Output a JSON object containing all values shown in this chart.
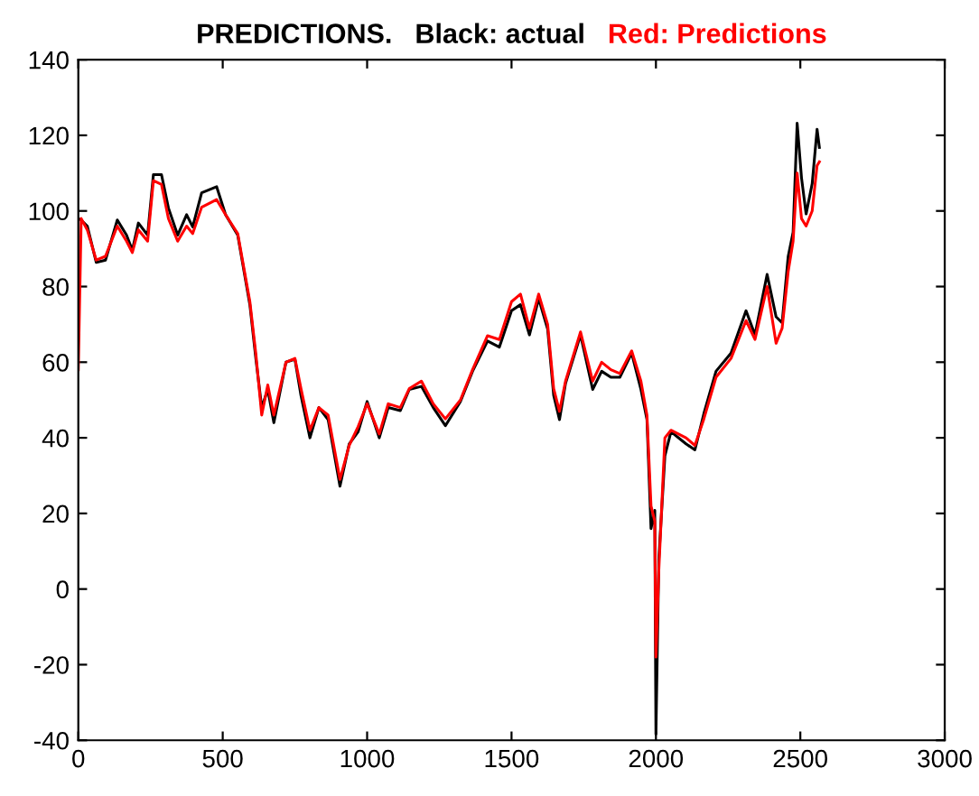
{
  "chart_data": {
    "type": "line",
    "title": "PREDICTIONS.",
    "x": [
      0,
      10,
      31,
      62,
      94,
      135,
      167,
      187,
      208,
      240,
      260,
      288,
      312,
      344,
      375,
      396,
      427,
      479,
      510,
      552,
      594,
      615,
      635,
      656,
      677,
      719,
      750,
      771,
      802,
      833,
      865,
      906,
      938,
      969,
      1000,
      1042,
      1073,
      1115,
      1146,
      1188,
      1229,
      1271,
      1323,
      1365,
      1417,
      1458,
      1500,
      1531,
      1562,
      1594,
      1625,
      1646,
      1666,
      1687,
      1739,
      1781,
      1812,
      1844,
      1875,
      1916,
      1948,
      1969,
      1983,
      1996,
      2000,
      2010,
      2031,
      2052,
      2104,
      2135,
      2166,
      2208,
      2260,
      2312,
      2343,
      2385,
      2416,
      2437,
      2458,
      2475,
      2489,
      2504,
      2520,
      2541,
      2558,
      2566
    ],
    "series": [
      {
        "name": "Black: actual",
        "color": "#000000",
        "values": [
          98,
          97.6,
          96,
          86.4,
          87,
          97.6,
          93.6,
          89.6,
          96.8,
          93.6,
          109.6,
          109.6,
          100.8,
          93.6,
          99,
          95.8,
          104.8,
          106.4,
          99,
          93.6,
          75.2,
          60.8,
          48,
          52.8,
          44,
          60,
          60.8,
          51.2,
          40,
          48,
          44.8,
          27.2,
          38.4,
          41.6,
          49.6,
          40,
          48,
          47.2,
          52.8,
          53.6,
          48,
          43.2,
          49.6,
          57.6,
          65.6,
          64,
          73.6,
          75.2,
          67.2,
          76.8,
          68.8,
          51.2,
          44.8,
          54.4,
          67.2,
          52.8,
          57.6,
          56,
          56,
          62.4,
          52.8,
          44.8,
          16,
          20.8,
          -38.4,
          8,
          35.2,
          41.6,
          38.4,
          36.8,
          46.4,
          57.6,
          62.4,
          73.6,
          67.2,
          83.2,
          72,
          70.4,
          88,
          94.4,
          123.2,
          108.8,
          99.2,
          107.2,
          121.6,
          116.8
        ]
      },
      {
        "name": "Red: Predictions",
        "color": "#ff0000",
        "values": [
          58,
          98,
          95,
          87,
          88,
          96,
          92,
          89,
          95,
          92,
          108,
          107,
          98,
          92,
          96,
          94,
          101,
          103,
          99,
          94,
          76,
          62,
          46,
          54,
          46,
          60,
          61,
          53,
          42,
          48,
          46,
          29,
          38,
          43,
          49,
          41,
          49,
          48,
          53,
          55,
          49,
          45,
          50,
          58,
          67,
          66,
          76,
          78,
          69,
          78,
          70,
          53,
          47,
          55,
          68,
          55,
          60,
          58,
          57,
          63,
          55,
          46,
          22,
          18,
          -18,
          5,
          40,
          42,
          40,
          38,
          45,
          56,
          61,
          71,
          66,
          80,
          65,
          69,
          84,
          92,
          110,
          98,
          96,
          100,
          112,
          113
        ]
      }
    ],
    "xlim": [
      0,
      3000
    ],
    "xticks": [
      0,
      500,
      1000,
      1500,
      2000,
      2500,
      3000
    ],
    "ylim": [
      -40,
      140
    ],
    "yticks": [
      -40,
      -20,
      0,
      20,
      40,
      60,
      80,
      100,
      120,
      140
    ],
    "grid": false,
    "marker": "none",
    "line_style": "solid"
  }
}
